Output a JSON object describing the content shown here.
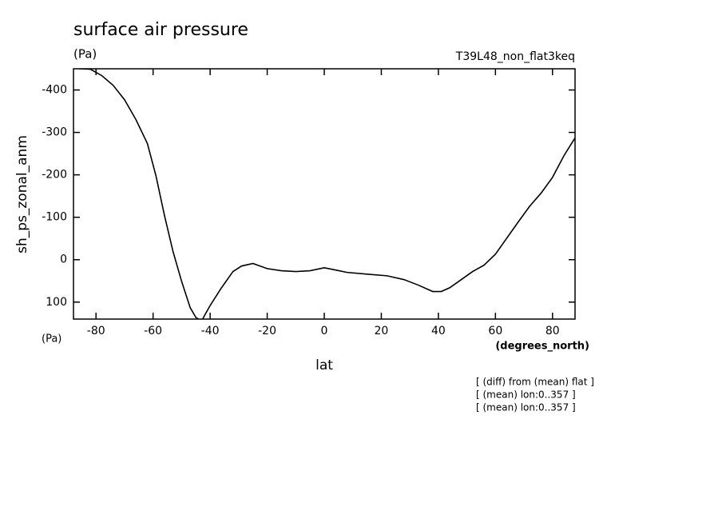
{
  "chart_data": {
    "type": "line",
    "title": "surface air pressure",
    "units_top": "(Pa)",
    "subtitle": "T39L48_non_flat3keq",
    "ylabel": "sh_ps_zonal_anm",
    "units_bottom": "(Pa)",
    "x_units": "(degrees_north)",
    "xlabel": "lat",
    "notes": [
      "[ (diff) from (mean) flat ]",
      "[ (mean) lon:0..357 ]",
      "[ (mean) lon:0..357 ]"
    ],
    "xlim": [
      -87.9,
      87.9
    ],
    "xticks": [
      -80,
      -60,
      -40,
      -20,
      0,
      20,
      40,
      60,
      80
    ],
    "ylim": [
      140,
      -450
    ],
    "yticks": [
      -400,
      -300,
      -200,
      -100,
      0,
      100
    ],
    "series": [
      {
        "color": "#000000",
        "x": [
          -87.9,
          -82,
          -78,
          -74,
          -70,
          -66,
          -62,
          -59,
          -56,
          -53,
          -50,
          -47,
          -45,
          -43,
          -42,
          -40,
          -36,
          -32,
          -29,
          -25,
          -20,
          -15,
          -10,
          -5,
          0,
          3,
          8,
          15,
          22,
          28,
          33,
          38,
          41,
          44,
          48,
          52,
          56,
          60,
          64,
          68,
          72,
          76,
          80,
          84,
          87.9
        ],
        "values": [
          -451,
          -449,
          -434,
          -411,
          -377,
          -330,
          -274,
          -198,
          -104,
          -19,
          51,
          113,
          136,
          145,
          132,
          108,
          66,
          28,
          15,
          9,
          21,
          26,
          28,
          26,
          19,
          23,
          30,
          34,
          38,
          47,
          60,
          75,
          75,
          66,
          47,
          28,
          13,
          -13,
          -51,
          -89,
          -126,
          -157,
          -194,
          -245,
          -287
        ]
      }
    ]
  }
}
